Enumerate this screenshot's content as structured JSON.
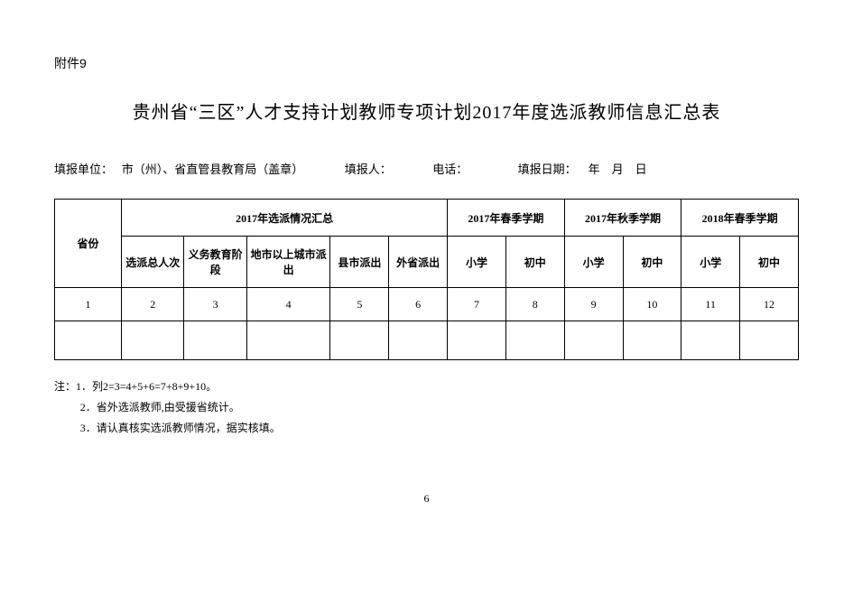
{
  "attachment": "附件9",
  "title": "贵州省“三区”人才支持计划教师专项计划2017年度选派教师信息汇总表",
  "meta": {
    "unit_label": "填报单位：",
    "unit_value": "   市（州）、省直管县教育局（盖章）",
    "person_label": "填报人：",
    "phone_label": "电话：",
    "date_label": "填报日期：",
    "date_value": "    年    月    日"
  },
  "table": {
    "col_province": "省份",
    "group1": "2017年选派情况汇总",
    "group2": "2017年春季学期",
    "group3": "2017年秋季学期",
    "group4": "2018年春季学期",
    "sub": [
      "选派总人次",
      "义务教育阶段",
      "地市以上城市派出",
      "县市派出",
      "外省派出",
      "小学",
      "初中",
      "小学",
      "初中",
      "小学",
      "初中"
    ],
    "nums": [
      "1",
      "2",
      "3",
      "4",
      "5",
      "6",
      "7",
      "8",
      "9",
      "10",
      "11",
      "12"
    ]
  },
  "notes": {
    "lead": "注：1．列2=3=4+5+6=7+8+9+10。",
    "n2": "2．省外选派教师,由受援省统计。",
    "n3": "3．请认真核实选派教师情况，据实核填。"
  },
  "page_number": "6"
}
